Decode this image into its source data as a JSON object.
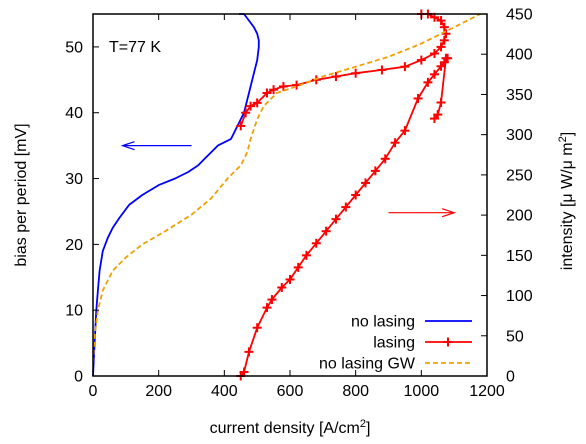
{
  "chart_data": {
    "type": "line",
    "title": "",
    "xlabel": "current density [A/cm",
    "xlabel_sup": "2",
    "xlabel_suffix": "]",
    "ylabel_left": "bias per period [mV]",
    "ylabel_right": "intensity [μ W/μ m",
    "ylabel_right_sup": "2",
    "ylabel_right_suffix": "]",
    "xlim": [
      0,
      1200
    ],
    "ylim_left": [
      0,
      55
    ],
    "ylim_right": [
      0,
      450
    ],
    "x_ticks": [
      "0",
      "200",
      "400",
      "600",
      "800",
      "1000",
      "1200"
    ],
    "y_left_ticks": [
      "0",
      "10",
      "20",
      "30",
      "40",
      "50"
    ],
    "y_right_ticks": [
      "0",
      "50",
      "100",
      "150",
      "200",
      "250",
      "300",
      "350",
      "400",
      "450"
    ],
    "annotation": "T=77 K",
    "legend_position": "bottom-right",
    "grid": false,
    "series": [
      {
        "name": "no lasing",
        "axis": "left",
        "color": "#0000ff",
        "marker": "none",
        "dash": "solid",
        "x": [
          0,
          5,
          10,
          15,
          20,
          30,
          45,
          60,
          80,
          110,
          150,
          200,
          250,
          290,
          320,
          340,
          360,
          380,
          400,
          420,
          440,
          460,
          470,
          480,
          490,
          500,
          505,
          505,
          500,
          490,
          475,
          460,
          445
        ],
        "y": [
          0,
          5,
          10,
          13,
          16,
          19,
          21,
          22.5,
          24,
          26,
          27.5,
          29,
          30,
          31,
          32,
          33,
          34,
          35,
          35.5,
          36,
          38,
          40,
          42,
          44,
          46,
          48,
          50,
          51,
          52,
          53,
          54,
          55,
          55
        ]
      },
      {
        "name": "lasing",
        "axis": "right",
        "color": "#ff0000",
        "marker": "plus",
        "dash": "solid",
        "x": [
          450,
          460,
          475,
          500,
          530,
          545,
          575,
          600,
          625,
          650,
          680,
          710,
          740,
          770,
          800,
          830,
          860,
          890,
          920,
          950,
          990,
          1020,
          1040,
          1060,
          1070,
          1080,
          1075,
          1060,
          1050,
          1040
        ],
        "y": [
          0,
          5,
          30,
          60,
          85,
          95,
          110,
          120,
          135,
          150,
          165,
          180,
          195,
          210,
          225,
          240,
          255,
          270,
          290,
          305,
          345,
          365,
          375,
          385,
          390,
          395,
          395,
          340,
          325,
          320
        ]
      },
      {
        "name": "lasing",
        "axis": "left",
        "color": "#ff0000",
        "marker": "plus",
        "dash": "solid",
        "x": [
          450,
          465,
          480,
          500,
          530,
          550,
          580,
          620,
          680,
          740,
          800,
          880,
          950,
          1000,
          1040,
          1060,
          1070,
          1075,
          1070,
          1060,
          1040,
          1020,
          1000
        ],
        "y": [
          38,
          40,
          41,
          41.5,
          43,
          43.5,
          44,
          44.2,
          45,
          45.5,
          46,
          46.5,
          47,
          48,
          49,
          50,
          51,
          52,
          53,
          54,
          54.5,
          55,
          55
        ]
      },
      {
        "name": "no lasing GW",
        "axis": "left",
        "color": "#f0a000",
        "marker": "none",
        "dash": "dashed",
        "x": [
          0,
          5,
          15,
          30,
          60,
          100,
          150,
          220,
          300,
          360,
          410,
          450,
          470,
          480,
          490,
          500,
          520,
          560,
          620,
          700,
          800,
          900,
          1000,
          1100,
          1180
        ],
        "y": [
          2,
          6,
          10,
          13,
          16,
          18,
          20,
          22,
          24.5,
          27,
          30,
          32,
          34,
          36,
          37.5,
          39,
          41,
          43,
          44,
          45.5,
          47,
          48.5,
          50.5,
          53,
          55
        ]
      }
    ],
    "arrows": [
      {
        "axis": "left",
        "direction": "left",
        "x_from": 300,
        "x_to": 90,
        "y": 35,
        "color": "#0000ff"
      },
      {
        "axis": "right",
        "direction": "right",
        "x_from": 900,
        "x_to": 1100,
        "y": 203,
        "color": "#ff0000"
      }
    ],
    "legend": [
      {
        "label": "no lasing",
        "color": "#0000ff",
        "marker": "none",
        "dash": "solid"
      },
      {
        "label": "lasing",
        "color": "#ff0000",
        "marker": "plus",
        "dash": "solid"
      },
      {
        "label": "no lasing GW",
        "color": "#f0a000",
        "marker": "none",
        "dash": "dashed"
      }
    ]
  }
}
